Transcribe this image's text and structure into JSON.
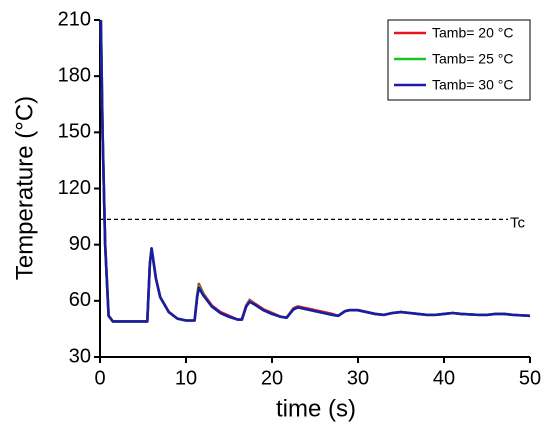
{
  "chart_data": {
    "type": "line",
    "x_label": "time (s)",
    "y_label": "Temperature (°C)",
    "xlim": [
      0,
      50
    ],
    "ylim": [
      30,
      210
    ],
    "xticks": [
      0,
      10,
      20,
      30,
      40,
      50
    ],
    "yticks": [
      30,
      60,
      90,
      120,
      150,
      180,
      210
    ],
    "legend_position": "upper right",
    "x": [
      0.1,
      0.3,
      0.6,
      1,
      1.5,
      5.5,
      5.8,
      6,
      6.5,
      7,
      8,
      9,
      10,
      11,
      11.3,
      11.5,
      12,
      13,
      14,
      15,
      16,
      16.5,
      17,
      17.4,
      18,
      19,
      20,
      21,
      21.7,
      22.5,
      23,
      24,
      25,
      26,
      27,
      27.7,
      28.5,
      29,
      30,
      31,
      32,
      33,
      34,
      35,
      36,
      37,
      38,
      39,
      40,
      41,
      42,
      44,
      45,
      46,
      47,
      48,
      50
    ],
    "series": [
      {
        "name": "Tamb= 20 °C",
        "color": "#e8141b",
        "values": [
          210,
          150,
          90,
          52,
          49,
          49,
          80,
          88,
          72,
          62,
          54,
          50.5,
          49.5,
          49.5,
          63,
          69,
          64,
          57.5,
          54,
          52,
          50,
          50,
          57.5,
          60.5,
          58.5,
          55.5,
          53.5,
          51.5,
          51,
          56,
          57,
          56,
          55,
          54,
          53,
          52,
          54.5,
          55,
          55,
          54,
          53,
          52.5,
          53.5,
          54,
          53.5,
          53,
          52.5,
          52.5,
          53,
          53.5,
          53,
          52.5,
          52.5,
          53,
          53,
          52.5,
          52
        ]
      },
      {
        "name": "Tamb= 25 °C",
        "color": "#1ec21e",
        "values": [
          210,
          150,
          90,
          52,
          49,
          49,
          80,
          88,
          72,
          62,
          54,
          50.5,
          49.5,
          49.5,
          62.5,
          68,
          63.5,
          57,
          53.5,
          51.5,
          50,
          50,
          57,
          60,
          58,
          55,
          53,
          51.5,
          51,
          55.5,
          56.5,
          55.5,
          54.5,
          53.5,
          52.5,
          52,
          54.5,
          55,
          55,
          54,
          53,
          52.5,
          53.5,
          54,
          53.5,
          53,
          52.5,
          52.5,
          53,
          53.5,
          53,
          52.5,
          52.5,
          53,
          53,
          52.5,
          52
        ]
      },
      {
        "name": "Tamb= 30 °C",
        "color": "#1b1ba6",
        "values": [
          210,
          150,
          90,
          52,
          49,
          49,
          80,
          88,
          72,
          62,
          54,
          50.5,
          49.5,
          49.5,
          62,
          67,
          63,
          57,
          53.5,
          51.5,
          50,
          50,
          57,
          59.5,
          58,
          55,
          53,
          51.5,
          51,
          55.5,
          56.5,
          55.5,
          54.5,
          53.5,
          52.5,
          52,
          54.5,
          55,
          55,
          54,
          53,
          52.5,
          53.5,
          54,
          53.5,
          53,
          52.5,
          52.5,
          53,
          53.5,
          53,
          52.5,
          52.5,
          53,
          53,
          52.5,
          52
        ]
      }
    ],
    "reference_line": {
      "value": 103.5,
      "label": "Tc"
    }
  }
}
